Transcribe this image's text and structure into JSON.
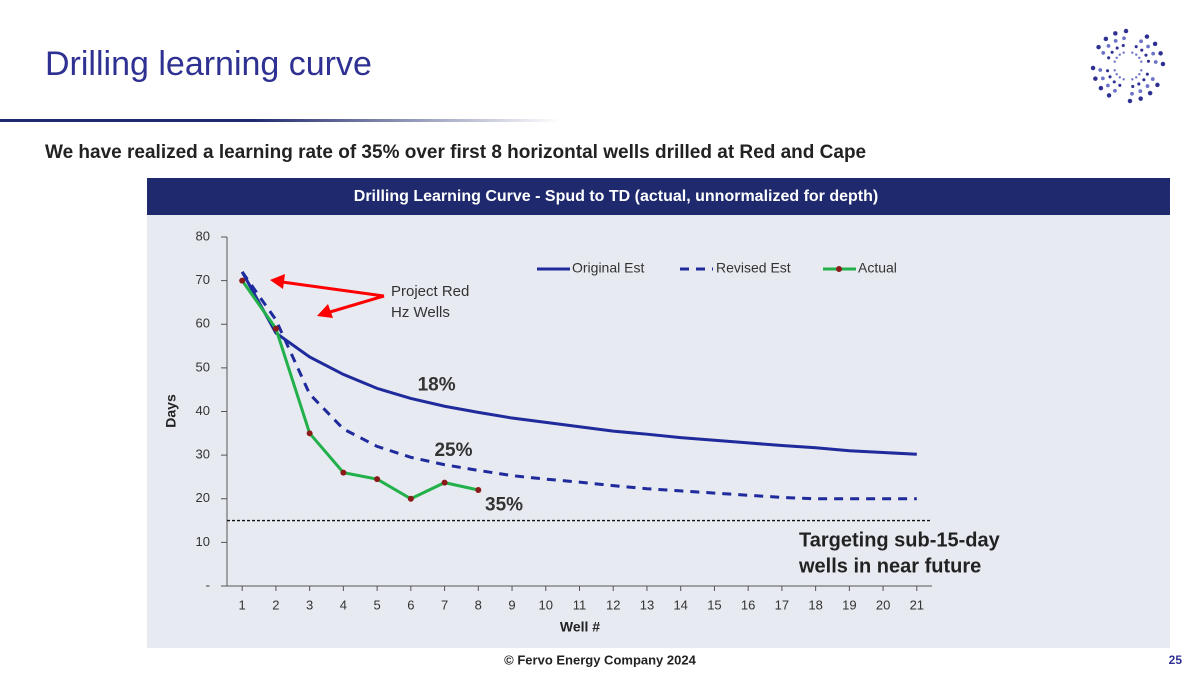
{
  "header": {
    "title": "Drilling learning curve",
    "subtitle": "We have realized a learning rate of 35% over first 8 horizontal wells drilled at Red and Cape"
  },
  "footer": {
    "copyright": "© Fervo Energy Company 2024",
    "page": "25"
  },
  "chart_data": {
    "type": "line",
    "title": "Drilling Learning Curve - Spud to TD (actual, unnormalized for depth)",
    "x_label": "Well #",
    "y_label": "Days",
    "x": [
      1,
      2,
      3,
      4,
      5,
      6,
      7,
      8,
      9,
      10,
      11,
      12,
      13,
      14,
      15,
      16,
      17,
      18,
      19,
      20,
      21
    ],
    "xlim": [
      0.55,
      21.45
    ],
    "xticks": [
      1,
      2,
      3,
      4,
      5,
      6,
      7,
      8,
      9,
      10,
      11,
      12,
      13,
      14,
      15,
      16,
      17,
      18,
      19,
      20,
      21
    ],
    "ylim": [
      0,
      80
    ],
    "yticks": [
      {
        "value": 0,
        "label": "-"
      },
      10,
      20,
      30,
      40,
      50,
      60,
      70,
      80
    ],
    "series": [
      {
        "name": "Original Est",
        "color": "#1f2a9c",
        "dash": "solid",
        "values": [
          72,
          58,
          52.5,
          48.5,
          45.3,
          43,
          41.2,
          39.8,
          38.5,
          37.5,
          36.5,
          35.5,
          34.8,
          34,
          33.4,
          32.8,
          32.2,
          31.7,
          31,
          30.6,
          30.2
        ]
      },
      {
        "name": "Revised Est",
        "color": "#1f2a9c",
        "dash": "dashed",
        "values": [
          72,
          61,
          44,
          36,
          32,
          29.5,
          27.8,
          26.5,
          25.3,
          24.5,
          23.8,
          23,
          22.3,
          21.8,
          21.3,
          20.8,
          20.3,
          20,
          20,
          20,
          20
        ]
      },
      {
        "name": "Actual",
        "color": "#22b04b",
        "marker_color": "#8b1a1a",
        "dash": "solid",
        "values": [
          70,
          59,
          35,
          26,
          24.5,
          20,
          23.7,
          22,
          null,
          null,
          null,
          null,
          null,
          null,
          null,
          null,
          null,
          null,
          null,
          null,
          null
        ]
      }
    ],
    "target_line": 15,
    "annotations": [
      {
        "text": "18%",
        "x": 6.2,
        "y": 46
      },
      {
        "text": "25%",
        "x": 6.7,
        "y": 31
      },
      {
        "text": "35%",
        "x": 8.2,
        "y": 18.5
      }
    ],
    "target_label": [
      "Targeting sub-15-day",
      "wells in near future"
    ],
    "callout": [
      "Project Red",
      "Hz Wells"
    ],
    "legend": "top-right"
  }
}
